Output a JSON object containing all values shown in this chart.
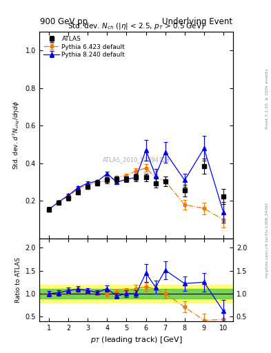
{
  "title_left": "900 GeV pp",
  "title_right": "Underlying Event",
  "plot_title": "Std. dev. $N_{ch}$ ($|\\eta|$ < 2.5, $p_T$ > 0.5 GeV)",
  "ylabel_main": "Std. dev. $d^2N_{chg}/d\\eta d\\phi$",
  "ylabel_ratio": "Ratio to ATLAS",
  "xlabel": "$p_T$ (leading track) [GeV]",
  "watermark": "ATLAS_2010_S8894728",
  "atlas_x": [
    1.0,
    1.5,
    2.0,
    2.5,
    3.0,
    3.5,
    4.0,
    4.5,
    5.0,
    5.5,
    6.0,
    6.5,
    7.0,
    8.0,
    9.0,
    10.0
  ],
  "atlas_y": [
    0.155,
    0.19,
    0.215,
    0.245,
    0.275,
    0.295,
    0.31,
    0.315,
    0.315,
    0.325,
    0.325,
    0.295,
    0.305,
    0.255,
    0.385,
    0.225
  ],
  "atlas_yerr": [
    0.012,
    0.012,
    0.012,
    0.012,
    0.012,
    0.012,
    0.015,
    0.015,
    0.015,
    0.02,
    0.02,
    0.025,
    0.025,
    0.03,
    0.04,
    0.04
  ],
  "py6_x": [
    1.0,
    1.5,
    2.0,
    2.5,
    3.0,
    3.5,
    4.0,
    4.5,
    5.0,
    5.5,
    6.0,
    6.5,
    7.0,
    8.0,
    9.0,
    10.0
  ],
  "py6_y": [
    0.155,
    0.195,
    0.225,
    0.265,
    0.285,
    0.3,
    0.31,
    0.325,
    0.335,
    0.36,
    0.375,
    0.325,
    0.305,
    0.18,
    0.16,
    0.1
  ],
  "py6_yerr": [
    0.008,
    0.008,
    0.008,
    0.008,
    0.008,
    0.008,
    0.01,
    0.01,
    0.01,
    0.015,
    0.02,
    0.02,
    0.025,
    0.025,
    0.03,
    0.04
  ],
  "py8_x": [
    1.0,
    1.5,
    2.0,
    2.5,
    3.0,
    3.5,
    4.0,
    4.5,
    5.0,
    5.5,
    6.0,
    6.5,
    7.0,
    8.0,
    9.0,
    10.0
  ],
  "py8_y": [
    0.155,
    0.195,
    0.23,
    0.27,
    0.295,
    0.305,
    0.345,
    0.3,
    0.315,
    0.325,
    0.47,
    0.335,
    0.46,
    0.31,
    0.48,
    0.14
  ],
  "py8_yerr": [
    0.008,
    0.008,
    0.008,
    0.008,
    0.008,
    0.008,
    0.012,
    0.012,
    0.015,
    0.015,
    0.055,
    0.035,
    0.055,
    0.035,
    0.065,
    0.055
  ],
  "ratio_py6_y": [
    1.0,
    1.02,
    1.05,
    1.08,
    1.04,
    1.02,
    1.0,
    1.03,
    1.06,
    1.11,
    1.15,
    1.1,
    1.0,
    0.71,
    0.42,
    0.44
  ],
  "ratio_py6_yerr": [
    0.06,
    0.06,
    0.06,
    0.06,
    0.05,
    0.05,
    0.06,
    0.06,
    0.06,
    0.08,
    0.09,
    0.1,
    0.1,
    0.12,
    0.15,
    0.22
  ],
  "ratio_py8_y": [
    1.0,
    1.02,
    1.07,
    1.1,
    1.07,
    1.03,
    1.11,
    0.95,
    1.0,
    1.0,
    1.45,
    1.14,
    1.51,
    1.22,
    1.25,
    0.62
  ],
  "ratio_py8_yerr": [
    0.06,
    0.06,
    0.06,
    0.06,
    0.05,
    0.05,
    0.07,
    0.06,
    0.07,
    0.07,
    0.19,
    0.14,
    0.2,
    0.16,
    0.2,
    0.25
  ],
  "atlas_color": "#000000",
  "py6_color": "#EE7700",
  "py8_color": "#0000EE",
  "band_green_inner": 0.1,
  "band_yellow_outer": 0.2,
  "xlim": [
    0.5,
    10.5
  ],
  "ylim_main": [
    0.0,
    1.1
  ],
  "ylim_ratio": [
    0.4,
    2.2
  ],
  "yticks_main": [
    0.2,
    0.4,
    0.6,
    0.8,
    1.0
  ],
  "yticks_ratio": [
    0.5,
    1.0,
    1.5,
    2.0
  ],
  "xticks": [
    1,
    2,
    3,
    4,
    5,
    6,
    7,
    8,
    9,
    10
  ]
}
